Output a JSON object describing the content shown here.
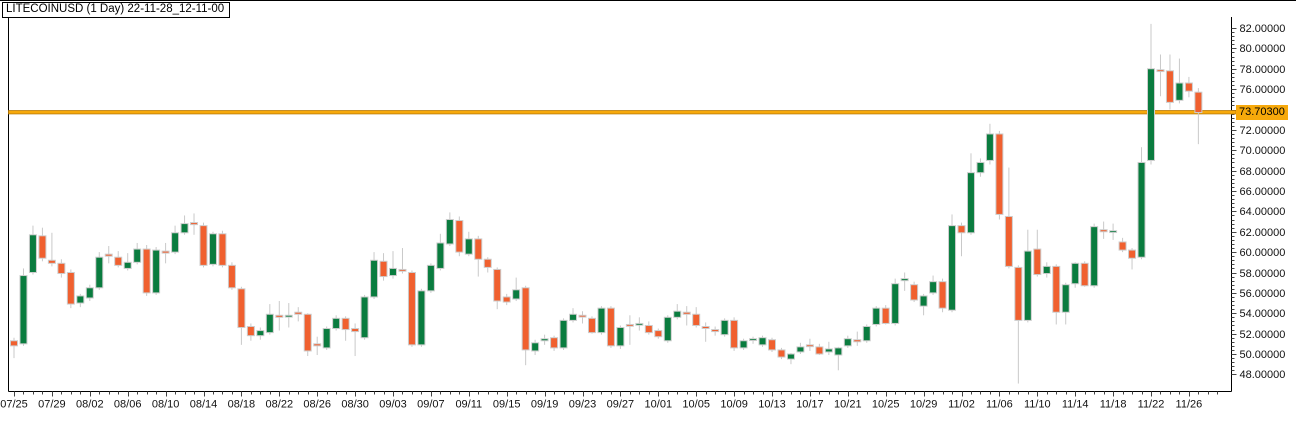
{
  "window": {
    "title": "LITECOINUSD (1 Day) 22-11-28_12-11-00"
  },
  "chart_data": {
    "type": "candlestick",
    "symbol": "LITECOINUSD",
    "timeframe": "1 Day",
    "snapshot_time": "22-11-28_12-11-00",
    "grid": "off",
    "legend": "none",
    "y_axis": {
      "side": "right",
      "min": 48.0,
      "max": 82.0,
      "major_step": 2.0,
      "minor_step": 0.4,
      "tick_labels": [
        "48.00000",
        "50.00000",
        "52.00000",
        "54.00000",
        "56.00000",
        "58.00000",
        "60.00000",
        "62.00000",
        "64.00000",
        "66.00000",
        "68.00000",
        "70.00000",
        "72.00000",
        "74.00000",
        "76.00000",
        "78.00000",
        "80.00000",
        "82.00000"
      ]
    },
    "x_axis": {
      "label_every_n_candles": 4,
      "tick_labels": [
        "07/25",
        "07/29",
        "08/02",
        "08/06",
        "08/10",
        "08/14",
        "08/18",
        "08/22",
        "08/26",
        "08/30",
        "09/03",
        "09/07",
        "09/11",
        "09/15",
        "09/19",
        "09/23",
        "09/27",
        "10/01",
        "10/05",
        "10/09",
        "10/13",
        "10/17",
        "10/21",
        "10/25",
        "10/29",
        "11/02",
        "11/06",
        "11/10",
        "11/14",
        "11/18",
        "11/22",
        "11/26"
      ]
    },
    "price_line": {
      "value": 73.703,
      "label": "73.70300"
    },
    "colors": {
      "up": "#0A7C3F",
      "down": "#F0602F",
      "wick": "#C9C9C9",
      "body_border": "#CDCDCD",
      "accent": "#F7A90B",
      "accent_border": "#B87B08",
      "axis_text": "#111111",
      "border": "#000000",
      "tick": "#444444",
      "background": "#FFFFFF"
    },
    "candles": {
      "columns": [
        "date",
        "open",
        "high",
        "low",
        "close"
      ],
      "rows": [
        [
          "07/25",
          51.3,
          51.6,
          49.6,
          50.8
        ],
        [
          "07/26",
          51.0,
          58.4,
          50.8,
          57.7
        ],
        [
          "07/27",
          58.0,
          62.6,
          57.8,
          61.7
        ],
        [
          "07/28",
          61.6,
          62.4,
          59.1,
          59.4
        ],
        [
          "07/29",
          59.2,
          61.9,
          58.6,
          58.9
        ],
        [
          "07/30",
          58.9,
          59.3,
          57.5,
          57.9
        ],
        [
          "07/31",
          58.0,
          58.3,
          54.5,
          54.9
        ],
        [
          "08/01",
          55.0,
          55.9,
          54.6,
          55.7
        ],
        [
          "08/02",
          55.5,
          56.8,
          55.2,
          56.5
        ],
        [
          "08/03",
          56.5,
          60.0,
          56.3,
          59.5
        ],
        [
          "08/04",
          59.8,
          60.6,
          58.9,
          59.6
        ],
        [
          "08/05",
          59.5,
          60.1,
          58.5,
          58.7
        ],
        [
          "08/06",
          58.4,
          59.9,
          58.2,
          59.0
        ],
        [
          "08/07",
          59.0,
          60.9,
          58.8,
          60.3
        ],
        [
          "08/08",
          60.3,
          60.7,
          55.7,
          56.0
        ],
        [
          "08/09",
          56.0,
          60.5,
          55.8,
          60.2
        ],
        [
          "08/10",
          60.1,
          60.9,
          58.9,
          59.9
        ],
        [
          "08/11",
          60.0,
          62.6,
          59.8,
          61.9
        ],
        [
          "08/12",
          61.9,
          63.6,
          61.7,
          62.8
        ],
        [
          "08/13",
          62.9,
          63.8,
          61.7,
          62.7
        ],
        [
          "08/14",
          62.6,
          62.9,
          58.5,
          58.7
        ],
        [
          "08/15",
          58.8,
          62.0,
          58.6,
          61.8
        ],
        [
          "08/16",
          61.8,
          62.1,
          58.5,
          58.7
        ],
        [
          "08/17",
          58.7,
          59.0,
          56.3,
          56.5
        ],
        [
          "08/18",
          56.4,
          56.6,
          50.9,
          52.6
        ],
        [
          "08/19",
          52.7,
          53.0,
          51.3,
          51.8
        ],
        [
          "08/20",
          51.8,
          52.6,
          51.4,
          52.3
        ],
        [
          "08/21",
          52.1,
          54.9,
          51.9,
          53.9
        ],
        [
          "08/22",
          53.8,
          55.2,
          52.3,
          53.6
        ],
        [
          "08/23",
          53.7,
          55.0,
          52.6,
          53.8
        ],
        [
          "08/24",
          54.1,
          54.6,
          53.2,
          53.9
        ],
        [
          "08/25",
          53.9,
          54.0,
          49.8,
          50.3
        ],
        [
          "08/26",
          51.0,
          51.7,
          49.9,
          50.8
        ],
        [
          "08/27",
          50.6,
          52.7,
          50.4,
          52.5
        ],
        [
          "08/28",
          52.5,
          53.8,
          52.3,
          53.5
        ],
        [
          "08/29",
          53.5,
          53.7,
          51.3,
          52.4
        ],
        [
          "08/30",
          52.5,
          53.0,
          49.8,
          52.2
        ],
        [
          "08/31",
          51.6,
          55.8,
          51.4,
          55.6
        ],
        [
          "09/01",
          55.6,
          60.0,
          55.4,
          59.2
        ],
        [
          "09/02",
          59.1,
          59.9,
          57.2,
          57.6
        ],
        [
          "09/03",
          57.7,
          60.1,
          57.4,
          58.4
        ],
        [
          "09/04",
          58.3,
          60.4,
          57.9,
          58.2
        ],
        [
          "09/05",
          58.0,
          58.2,
          50.7,
          50.9
        ],
        [
          "09/06",
          50.9,
          56.4,
          50.7,
          56.2
        ],
        [
          "09/07",
          56.2,
          58.9,
          56.0,
          58.7
        ],
        [
          "09/08",
          58.4,
          61.8,
          58.2,
          60.9
        ],
        [
          "09/09",
          60.8,
          63.9,
          60.6,
          63.2
        ],
        [
          "09/10",
          63.1,
          63.5,
          59.6,
          60.0
        ],
        [
          "09/11",
          59.8,
          62.0,
          59.6,
          61.3
        ],
        [
          "09/12",
          61.3,
          61.6,
          57.6,
          59.3
        ],
        [
          "09/13",
          59.3,
          59.5,
          58.0,
          58.5
        ],
        [
          "09/14",
          58.3,
          58.5,
          54.4,
          55.2
        ],
        [
          "09/15",
          55.6,
          55.9,
          54.8,
          55.1
        ],
        [
          "09/16",
          55.4,
          57.5,
          55.2,
          56.3
        ],
        [
          "09/17",
          56.5,
          56.7,
          48.9,
          50.4
        ],
        [
          "09/18",
          50.3,
          51.4,
          49.9,
          51.1
        ],
        [
          "09/19",
          51.3,
          51.9,
          50.9,
          51.5
        ],
        [
          "09/20",
          51.6,
          51.8,
          50.3,
          50.6
        ],
        [
          "09/21",
          50.6,
          53.5,
          50.4,
          53.3
        ],
        [
          "09/22",
          53.3,
          54.5,
          53.1,
          53.9
        ],
        [
          "09/23",
          53.8,
          54.2,
          53.0,
          53.7
        ],
        [
          "09/24",
          53.5,
          53.7,
          52.0,
          52.1
        ],
        [
          "09/25",
          52.1,
          54.7,
          51.9,
          54.5
        ],
        [
          "09/26",
          54.5,
          54.7,
          50.6,
          50.8
        ],
        [
          "09/27",
          50.8,
          52.8,
          50.5,
          52.6
        ],
        [
          "09/28",
          52.9,
          53.8,
          50.9,
          52.8
        ],
        [
          "09/29",
          53.0,
          53.6,
          52.3,
          53.0
        ],
        [
          "09/30",
          52.8,
          53.2,
          51.9,
          52.1
        ],
        [
          "10/01",
          52.3,
          52.5,
          51.5,
          51.7
        ],
        [
          "10/02",
          51.3,
          53.8,
          51.1,
          53.6
        ],
        [
          "10/03",
          53.6,
          54.9,
          53.4,
          54.2
        ],
        [
          "10/04",
          54.1,
          54.7,
          52.8,
          53.9
        ],
        [
          "10/05",
          53.9,
          54.6,
          52.6,
          52.8
        ],
        [
          "10/06",
          52.7,
          53.1,
          51.2,
          52.5
        ],
        [
          "10/07",
          52.4,
          52.7,
          51.8,
          52.2
        ],
        [
          "10/08",
          51.9,
          53.5,
          51.7,
          53.3
        ],
        [
          "10/09",
          53.3,
          53.6,
          50.3,
          50.6
        ],
        [
          "10/10",
          50.6,
          51.5,
          50.4,
          51.3
        ],
        [
          "10/11",
          51.4,
          51.7,
          51.0,
          51.5
        ],
        [
          "10/12",
          50.9,
          51.8,
          50.7,
          51.6
        ],
        [
          "10/13",
          51.4,
          51.6,
          50.2,
          50.4
        ],
        [
          "10/14",
          50.4,
          50.6,
          49.5,
          49.7
        ],
        [
          "10/15",
          49.5,
          50.1,
          49.0,
          50.0
        ],
        [
          "10/16",
          50.2,
          51.1,
          50.0,
          50.7
        ],
        [
          "10/17",
          50.9,
          51.5,
          50.3,
          50.8
        ],
        [
          "10/18",
          50.7,
          51.0,
          49.9,
          50.0
        ],
        [
          "10/19",
          50.2,
          51.2,
          49.9,
          50.5
        ],
        [
          "10/20",
          49.9,
          50.7,
          48.4,
          50.6
        ],
        [
          "10/21",
          50.8,
          51.8,
          50.6,
          51.5
        ],
        [
          "10/22",
          51.4,
          52.2,
          50.8,
          51.2
        ],
        [
          "10/23",
          51.3,
          52.9,
          51.1,
          52.7
        ],
        [
          "10/24",
          52.9,
          54.7,
          52.7,
          54.5
        ],
        [
          "10/25",
          54.5,
          54.8,
          52.9,
          53.0
        ],
        [
          "10/26",
          53.0,
          57.4,
          52.8,
          56.9
        ],
        [
          "10/27",
          57.2,
          58.0,
          56.2,
          57.4
        ],
        [
          "10/28",
          56.8,
          57.1,
          55.1,
          55.3
        ],
        [
          "10/29",
          54.7,
          55.9,
          53.8,
          55.7
        ],
        [
          "10/30",
          56.0,
          57.7,
          55.8,
          57.1
        ],
        [
          "10/31",
          57.1,
          57.4,
          54.1,
          54.5
        ],
        [
          "11/01",
          54.3,
          63.7,
          54.1,
          62.6
        ],
        [
          "11/02",
          62.6,
          62.9,
          59.6,
          61.9
        ],
        [
          "11/03",
          61.9,
          69.7,
          61.7,
          67.8
        ],
        [
          "11/04",
          67.8,
          69.2,
          67.4,
          68.8
        ],
        [
          "11/05",
          69.0,
          72.6,
          68.6,
          71.6
        ],
        [
          "11/06",
          71.6,
          71.9,
          63.2,
          63.7
        ],
        [
          "11/07",
          63.5,
          68.3,
          58.4,
          58.6
        ],
        [
          "11/08",
          58.5,
          58.7,
          47.1,
          53.3
        ],
        [
          "11/09",
          53.3,
          62.2,
          53.1,
          60.1
        ],
        [
          "11/10",
          60.3,
          62.2,
          57.6,
          57.8
        ],
        [
          "11/11",
          57.9,
          59.0,
          57.5,
          58.6
        ],
        [
          "11/12",
          58.6,
          58.8,
          52.9,
          54.1
        ],
        [
          "11/13",
          54.1,
          57.0,
          52.9,
          56.8
        ],
        [
          "11/14",
          56.9,
          59.0,
          56.5,
          58.9
        ],
        [
          "11/15",
          58.9,
          59.1,
          56.6,
          56.7
        ],
        [
          "11/16",
          56.7,
          62.8,
          56.5,
          62.5
        ],
        [
          "11/17",
          62.2,
          63.0,
          61.3,
          62.0
        ],
        [
          "11/18",
          62.0,
          62.8,
          61.2,
          62.1
        ],
        [
          "11/19",
          61.0,
          61.4,
          60.0,
          60.2
        ],
        [
          "11/20",
          60.2,
          60.4,
          58.3,
          59.4
        ],
        [
          "11/21",
          59.5,
          70.3,
          59.3,
          68.8
        ],
        [
          "11/22",
          69.0,
          82.4,
          68.6,
          78.0
        ],
        [
          "11/23",
          77.9,
          79.4,
          75.3,
          77.8
        ],
        [
          "11/24",
          77.8,
          79.4,
          74.0,
          74.7
        ],
        [
          "11/25",
          74.9,
          79.0,
          74.6,
          76.6
        ],
        [
          "11/26",
          76.6,
          77.2,
          75.2,
          75.8
        ],
        [
          "11/27",
          75.7,
          76.1,
          70.6,
          73.703
        ]
      ]
    }
  }
}
